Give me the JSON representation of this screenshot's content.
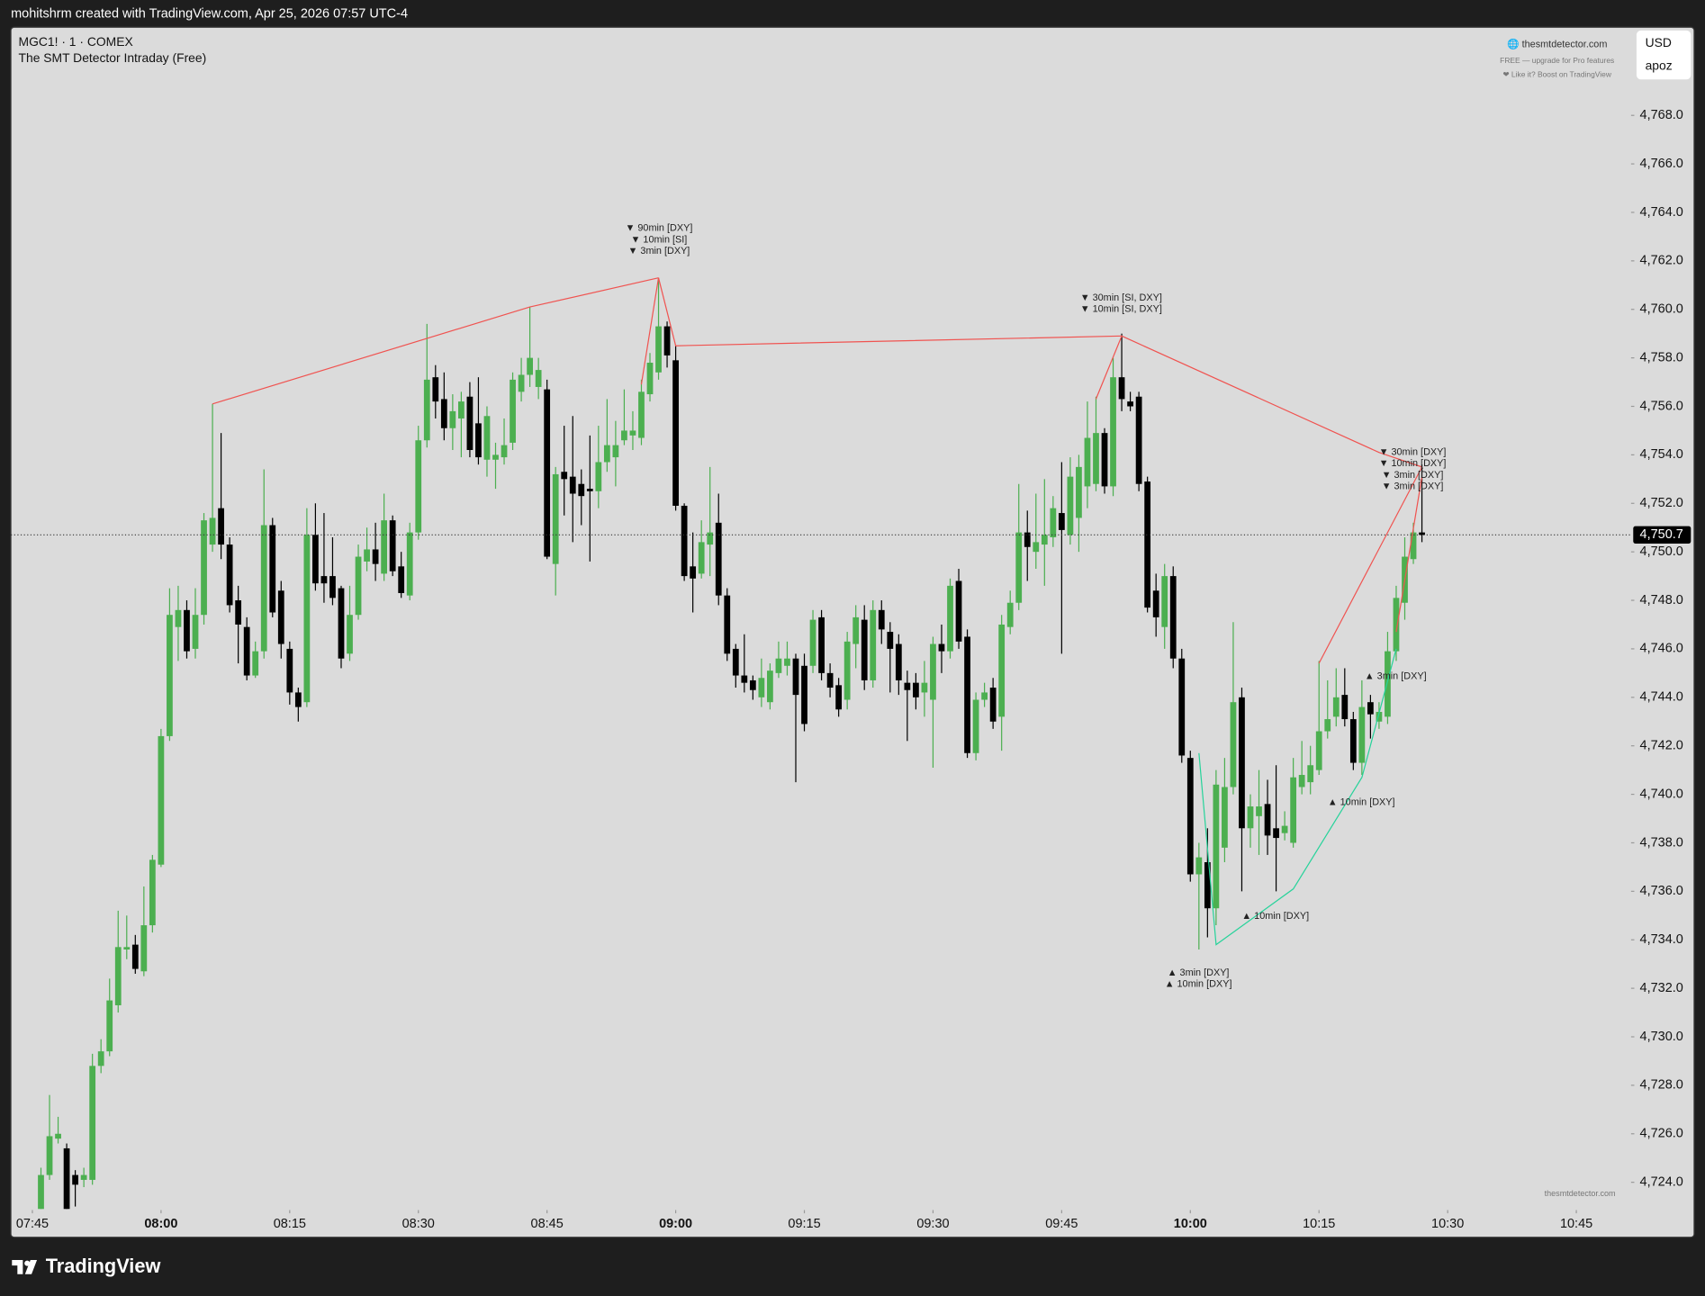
{
  "header": "mohitshrm created with TradingView.com, Apr 25, 2026 07:57 UTC-4",
  "branding": [
    "🌐 thesmtdetector.com",
    "FREE — upgrade for Pro features",
    "❤ Like it? Boost on TradingView"
  ],
  "currency": "USD",
  "account": "apoz",
  "watermark": "thesmtdetector.com",
  "logo": "TradingView",
  "chart_data": {
    "type": "candlestick",
    "symbol": "MGC1! · 1 · COMEX",
    "indicator": "The SMT Detector Intraday (Free)",
    "up_color": "#4caf50",
    "down_color": "#000000",
    "xlim": [
      "07:43",
      "10:51"
    ],
    "xticks": [
      "07:45",
      "08:00",
      "08:15",
      "08:30",
      "08:45",
      "09:00",
      "09:15",
      "09:30",
      "09:45",
      "10:00",
      "10:15",
      "10:30",
      "10:45"
    ],
    "ylim": [
      4722.9,
      4771.5
    ],
    "yticks": [
      {
        "value": 4724,
        "label": "4,724.0"
      },
      {
        "value": 4726,
        "label": "4,726.0"
      },
      {
        "value": 4728,
        "label": "4,728.0"
      },
      {
        "value": 4730,
        "label": "4,730.0"
      },
      {
        "value": 4732,
        "label": "4,732.0"
      },
      {
        "value": 4734,
        "label": "4,734.0"
      },
      {
        "value": 4736,
        "label": "4,736.0"
      },
      {
        "value": 4738,
        "label": "4,738.0"
      },
      {
        "value": 4740,
        "label": "4,740.0"
      },
      {
        "value": 4742,
        "label": "4,742.0"
      },
      {
        "value": 4744,
        "label": "4,744.0"
      },
      {
        "value": 4746,
        "label": "4,746.0"
      },
      {
        "value": 4748,
        "label": "4,748.0"
      },
      {
        "value": 4750,
        "label": "4,750.0"
      },
      {
        "value": 4752,
        "label": "4,752.0"
      },
      {
        "value": 4754,
        "label": "4,754.0"
      },
      {
        "value": 4756,
        "label": "4,756.0"
      },
      {
        "value": 4758,
        "label": "4,758.0"
      },
      {
        "value": 4760,
        "label": "4,760.0"
      },
      {
        "value": 4762,
        "label": "4,762.0"
      },
      {
        "value": 4764,
        "label": "4,764.0"
      },
      {
        "value": 4766,
        "label": "4,766.0"
      },
      {
        "value": 4768,
        "label": "4,768.0"
      }
    ],
    "last_price": {
      "value": 4750.7,
      "label": "4,750.7"
    },
    "x": [
      "07:46",
      "07:47",
      "07:48",
      "07:49",
      "07:50",
      "07:51",
      "07:52",
      "07:53",
      "07:54",
      "07:55",
      "07:56",
      "07:57",
      "07:58",
      "07:59",
      "08:00",
      "08:01",
      "08:02",
      "08:03",
      "08:04",
      "08:05",
      "08:06",
      "08:07",
      "08:08",
      "08:09",
      "08:10",
      "08:11",
      "08:12",
      "08:13",
      "08:14",
      "08:15",
      "08:16",
      "08:17",
      "08:18",
      "08:19",
      "08:20",
      "08:21",
      "08:22",
      "08:23",
      "08:24",
      "08:25",
      "08:26",
      "08:27",
      "08:28",
      "08:29",
      "08:30",
      "08:31",
      "08:32",
      "08:33",
      "08:34",
      "08:35",
      "08:36",
      "08:37",
      "08:38",
      "08:39",
      "08:40",
      "08:41",
      "08:42",
      "08:43",
      "08:44",
      "08:45",
      "08:46",
      "08:47",
      "08:48",
      "08:49",
      "08:50",
      "08:51",
      "08:52",
      "08:53",
      "08:54",
      "08:55",
      "08:56",
      "08:57",
      "08:58",
      "08:59",
      "09:00",
      "09:01",
      "09:02",
      "09:03",
      "09:04",
      "09:05",
      "09:06",
      "09:07",
      "09:08",
      "09:09",
      "09:10",
      "09:11",
      "09:12",
      "09:13",
      "09:14",
      "09:15",
      "09:16",
      "09:17",
      "09:18",
      "09:19",
      "09:20",
      "09:21",
      "09:22",
      "09:23",
      "09:24",
      "09:25",
      "09:26",
      "09:27",
      "09:28",
      "09:29",
      "09:30",
      "09:31",
      "09:32",
      "09:33",
      "09:34",
      "09:35",
      "09:36",
      "09:37",
      "09:38",
      "09:39",
      "09:40",
      "09:41",
      "09:42",
      "09:43",
      "09:44",
      "09:45",
      "09:46",
      "09:47",
      "09:48",
      "09:49",
      "09:50",
      "09:51",
      "09:52",
      "09:53",
      "09:54",
      "09:55",
      "09:56",
      "09:57",
      "09:58",
      "09:59",
      "10:00",
      "10:01",
      "10:02",
      "10:03",
      "10:04",
      "10:05",
      "10:06",
      "10:07",
      "10:08",
      "10:09",
      "10:10",
      "10:11",
      "10:12",
      "10:13",
      "10:14",
      "10:15",
      "10:16",
      "10:17",
      "10:18",
      "10:19",
      "10:20",
      "10:21",
      "10:22",
      "10:23",
      "10:24",
      "10:25",
      "10:26",
      "10:27"
    ],
    "open": [
      4722.9,
      4724.3,
      4725.8,
      4725.4,
      4724.3,
      4724.1,
      4724.1,
      4728.8,
      4729.4,
      4731.3,
      4733.6,
      4733.8,
      4732.7,
      4734.6,
      4737.1,
      4742.4,
      4746.9,
      4747.6,
      4746.0,
      4747.4,
      4750.3,
      4751.8,
      4750.3,
      4748.0,
      4746.9,
      4744.9,
      4745.9,
      4751.1,
      4748.4,
      4746.0,
      4744.2,
      4743.8,
      4750.7,
      4749.0,
      4749.0,
      4748.5,
      4745.8,
      4747.4,
      4749.6,
      4750.1,
      4749.1,
      4751.3,
      4749.4,
      4748.2,
      4750.8,
      4754.6,
      4757.2,
      4756.3,
      4755.1,
      4755.5,
      4756.4,
      4755.3,
      4753.8,
      4753.8,
      4753.9,
      4754.5,
      4756.6,
      4757.3,
      4756.8,
      4756.7,
      4749.5,
      4753.3,
      4753.1,
      4752.8,
      4752.6,
      4752.5,
      4753.7,
      4753.9,
      4754.6,
      4754.8,
      4754.7,
      4756.5,
      4757.4,
      4759.3,
      4757.9,
      4751.9,
      4749.4,
      4749.1,
      4750.3,
      4751.2,
      4748.2,
      4746.0,
      4744.9,
      4744.7,
      4744.0,
      4743.8,
      4745.0,
      4745.3,
      4745.6,
      4745.3,
      4745.3,
      4747.3,
      4745.0,
      4744.5,
      4743.9,
      4746.2,
      4747.2,
      4744.7,
      4747.6,
      4746.7,
      4746.2,
      4744.6,
      4744.6,
      4744.2,
      4743.9,
      4746.2,
      4745.9,
      4748.8,
      4746.5,
      4741.7,
      4743.9,
      4744.4,
      4743.2,
      4746.9,
      4747.9,
      4750.8,
      4750.0,
      4750.3,
      4750.6,
      4751.6,
      4750.7,
      4751.4,
      4752.7,
      4752.8,
      4754.9,
      4752.7,
      4757.2,
      4756.2,
      4756.4,
      4752.9,
      4748.4,
      4746.9,
      4749.0,
      4745.6,
      4741.5,
      4736.7,
      4737.2,
      4735.3,
      4737.8,
      4740.3,
      4744.0,
      4738.6,
      4739.1,
      4739.6,
      4738.6,
      4738.4,
      4738.0,
      4740.3,
      4740.5,
      4741.0,
      4742.6,
      4743.2,
      4744.1,
      4743.1,
      4741.3,
      4743.8,
      4743.0,
      4743.2,
      4745.9,
      4747.9,
      4749.7,
      4750.8
    ],
    "high": [
      4724.6,
      4727.6,
      4726.7,
      4725.6,
      4724.5,
      4724.6,
      4729.3,
      4729.9,
      4732.4,
      4735.2,
      4735.0,
      4734.2,
      4736.2,
      4737.5,
      4742.7,
      4748.5,
      4748.6,
      4748.0,
      4748.5,
      4751.6,
      4756.1,
      4754.9,
      4750.6,
      4748.6,
      4747.3,
      4746.3,
      4753.4,
      4751.4,
      4748.8,
      4746.3,
      4744.4,
      4751.8,
      4752.0,
      4751.6,
      4750.6,
      4748.6,
      4748.6,
      4750.3,
      4751.0,
      4751.2,
      4752.4,
      4751.5,
      4750.0,
      4751.2,
      4755.2,
      4759.4,
      4757.7,
      4757.4,
      4756.5,
      4756.6,
      4757.0,
      4757.2,
      4756.0,
      4754.5,
      4755.5,
      4757.4,
      4758.0,
      4760.1,
      4758.0,
      4757.1,
      4753.5,
      4755.2,
      4755.6,
      4753.4,
      4754.8,
      4755.2,
      4756.3,
      4755.4,
      4756.7,
      4755.8,
      4757.1,
      4758.2,
      4761.3,
      4759.5,
      4758.5,
      4752.0,
      4750.8,
      4751.3,
      4753.5,
      4752.4,
      4748.5,
      4746.2,
      4746.6,
      4744.9,
      4745.6,
      4745.4,
      4746.3,
      4746.3,
      4745.8,
      4745.8,
      4747.6,
      4747.6,
      4745.4,
      4744.8,
      4746.7,
      4747.8,
      4747.8,
      4748.0,
      4748.0,
      4747.1,
      4746.6,
      4745.1,
      4745.0,
      4745.5,
      4746.5,
      4747.0,
      4748.9,
      4749.3,
      4746.8,
      4744.2,
      4744.6,
      4744.8,
      4747.4,
      4748.4,
      4752.8,
      4751.7,
      4752.4,
      4753.0,
      4752.3,
      4753.7,
      4753.9,
      4754.0,
      4756.2,
      4756.4,
      4755.1,
      4758.0,
      4759.0,
      4756.6,
      4756.6,
      4753.1,
      4749.1,
      4749.5,
      4749.4,
      4746.0,
      4741.8,
      4738.0,
      4738.6,
      4741.0,
      4741.5,
      4747.1,
      4744.4,
      4740.0,
      4741.0,
      4740.6,
      4741.2,
      4739.3,
      4741.5,
      4742.2,
      4742.0,
      4745.5,
      4744.7,
      4745.2,
      4745.2,
      4743.4,
      4744.7,
      4744.1,
      4743.8,
      4746.7,
      4748.6,
      4750.6,
      4751.2,
      4753.6
    ],
    "low": [
      4722.9,
      4724.1,
      4725.6,
      4722.9,
      4723.0,
      4723.8,
      4723.9,
      4728.5,
      4729.2,
      4731.0,
      4733.2,
      4732.6,
      4732.5,
      4734.3,
      4737.0,
      4742.2,
      4745.5,
      4745.6,
      4745.6,
      4747.0,
      4750.0,
      4749.7,
      4747.5,
      4745.4,
      4744.7,
      4744.8,
      4745.6,
      4747.3,
      4745.6,
      4743.7,
      4743.0,
      4743.6,
      4748.4,
      4747.9,
      4747.8,
      4745.2,
      4745.5,
      4747.2,
      4749.2,
      4748.8,
      4748.8,
      4749.0,
      4748.1,
      4748.0,
      4750.5,
      4754.3,
      4755.5,
      4754.6,
      4754.2,
      4753.9,
      4753.9,
      4753.6,
      4753.1,
      4752.6,
      4753.6,
      4754.2,
      4756.2,
      4756.8,
      4756.3,
      4749.7,
      4748.2,
      4751.5,
      4750.4,
      4751.1,
      4749.6,
      4751.8,
      4753.3,
      4752.7,
      4754.4,
      4754.2,
      4754.4,
      4756.2,
      4757.1,
      4757.6,
      4751.7,
      4748.8,
      4747.5,
      4748.9,
      4749.0,
      4747.8,
      4745.5,
      4744.4,
      4744.2,
      4743.9,
      4743.6,
      4743.5,
      4744.8,
      4744.9,
      4740.5,
      4742.6,
      4745.0,
      4744.7,
      4744.0,
      4743.2,
      4743.5,
      4745.2,
      4744.3,
      4744.4,
      4746.2,
      4744.2,
      4744.1,
      4742.2,
      4743.5,
      4743.2,
      4741.1,
      4745.0,
      4745.6,
      4746.0,
      4741.5,
      4741.4,
      4743.6,
      4742.7,
      4741.8,
      4746.6,
      4747.6,
      4748.8,
      4749.3,
      4748.6,
      4750.2,
      4745.8,
      4750.3,
      4750.0,
      4751.8,
      4752.5,
      4752.4,
      4752.3,
      4755.8,
      4755.8,
      4752.5,
      4747.5,
      4746.5,
      4746.0,
      4745.2,
      4741.3,
      4736.4,
      4733.6,
      4734.1,
      4734.6,
      4737.2,
      4740.0,
      4736.0,
      4737.8,
      4737.5,
      4737.5,
      4736.0,
      4738.1,
      4737.8,
      4740.0,
      4740.0,
      4740.8,
      4742.3,
      4742.8,
      4742.8,
      4741.0,
      4740.8,
      4742.3,
      4742.7,
      4742.9,
      4745.5,
      4747.2,
      4749.5,
      4750.4
    ],
    "close": [
      4724.3,
      4725.9,
      4726.0,
      4722.9,
      4723.9,
      4724.3,
      4728.8,
      4729.4,
      4731.5,
      4733.7,
      4733.7,
      4732.8,
      4734.6,
      4737.3,
      4742.4,
      4747.4,
      4747.6,
      4745.9,
      4747.4,
      4751.3,
      4751.4,
      4750.3,
      4747.8,
      4747.0,
      4744.9,
      4745.9,
      4751.1,
      4747.5,
      4746.2,
      4744.2,
      4743.6,
      4750.7,
      4748.7,
      4748.7,
      4748.1,
      4745.6,
      4747.4,
      4749.8,
      4750.1,
      4749.5,
      4751.3,
      4749.2,
      4748.3,
      4750.8,
      4754.6,
      4757.1,
      4756.2,
      4755.1,
      4755.8,
      4756.2,
      4754.2,
      4753.9,
      4755.6,
      4754.0,
      4754.4,
      4757.1,
      4757.3,
      4758.0,
      4757.5,
      4749.8,
      4753.2,
      4753.0,
      4752.4,
      4752.3,
      4752.5,
      4753.7,
      4754.4,
      4754.4,
      4755.0,
      4755.0,
      4756.6,
      4757.8,
      4759.3,
      4758.1,
      4751.9,
      4749.0,
      4748.9,
      4750.4,
      4750.8,
      4748.2,
      4745.8,
      4744.9,
      4744.6,
      4744.3,
      4744.8,
      4745.1,
      4745.6,
      4745.6,
      4744.1,
      4742.9,
      4747.2,
      4745.0,
      4744.4,
      4743.5,
      4746.3,
      4747.3,
      4744.7,
      4747.6,
      4746.8,
      4746.0,
      4744.7,
      4744.3,
      4744.0,
      4744.6,
      4746.2,
      4745.9,
      4748.6,
      4746.3,
      4741.7,
      4743.9,
      4744.2,
      4743.0,
      4747.0,
      4747.9,
      4750.8,
      4750.2,
      4750.4,
      4750.7,
      4751.8,
      4750.9,
      4753.1,
      4753.5,
      4754.7,
      4754.9,
      4752.7,
      4757.2,
      4756.3,
      4756.0,
      4752.8,
      4747.7,
      4747.3,
      4749.0,
      4745.6,
      4741.6,
      4736.7,
      4737.4,
      4735.3,
      4740.4,
      4740.3,
      4743.8,
      4738.6,
      4739.5,
      4739.5,
      4738.3,
      4738.2,
      4738.7,
      4740.7,
      4740.8,
      4741.2,
      4742.6,
      4743.1,
      4744.0,
      4743.1,
      4741.3,
      4743.6,
      4743.3,
      4743.4,
      4745.9,
      4748.1,
      4749.8,
      4750.8,
      4750.7
    ],
    "divergences": [
      {
        "color": "#f05350",
        "x": [
          "08:06",
          "08:43",
          "08:58"
        ],
        "y": [
          4756.1,
          4760.1,
          4761.3
        ]
      },
      {
        "color": "#f05350",
        "x": [
          "08:56",
          "08:58"
        ],
        "y": [
          4756.9,
          4761.3
        ]
      },
      {
        "color": "#f05350",
        "x": [
          "08:58",
          "09:00",
          "09:52"
        ],
        "y": [
          4761.3,
          4758.5,
          4758.9
        ]
      },
      {
        "color": "#f05350",
        "x": [
          "09:49",
          "09:52",
          "10:22",
          "10:27"
        ],
        "y": [
          4756.3,
          4758.9,
          4754.1,
          4753.5
        ]
      },
      {
        "color": "#f05350",
        "x": [
          "10:15",
          "10:27"
        ],
        "y": [
          4745.4,
          4753.5
        ]
      },
      {
        "color": "#f05350",
        "x": [
          "10:24",
          "10:27"
        ],
        "y": [
          4746.7,
          4753.1
        ]
      },
      {
        "color": "#26d39a",
        "x": [
          "10:01",
          "10:03",
          "10:12",
          "10:20",
          "10:24"
        ],
        "y": [
          4741.7,
          4733.8,
          4736.1,
          4740.7,
          4746.0
        ]
      }
    ],
    "annotations": [
      [
        "▼ 90min [DXY]",
        "▼ 10min [SI]",
        "▼ 3min [DXY]"
      ],
      [
        "▼ 30min [SI, DXY]",
        "▼ 10min [SI, DXY]"
      ],
      [
        "▼ 30min [DXY]",
        "▼ 10min [DXY]",
        "▼ 3min [DXY]",
        "▼ 3min [DXY]"
      ],
      [
        "▲ 3min [DXY]"
      ],
      [
        "▲ 10min [DXY]"
      ],
      [
        "▲ 10min [DXY]"
      ],
      [
        "▲ 3min [DXY]",
        "▲ 10min [DXY]"
      ]
    ]
  }
}
